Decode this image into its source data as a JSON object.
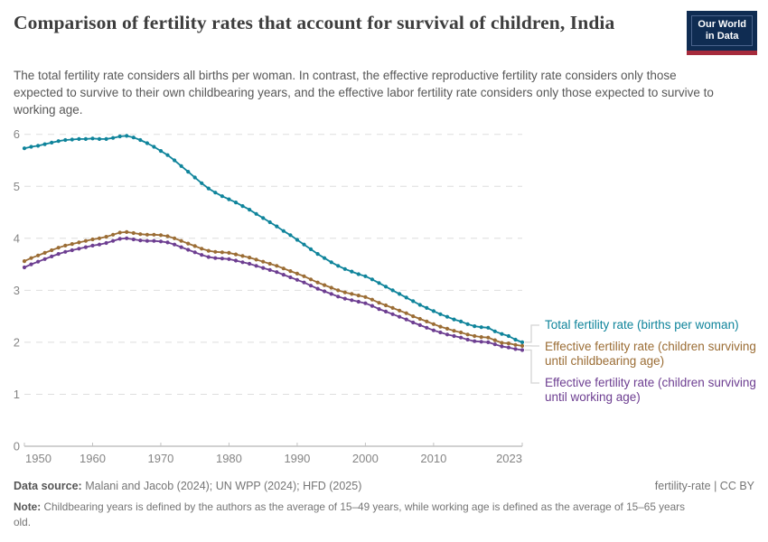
{
  "header": {
    "title": "Comparison of fertility rates that account for survival of children, India",
    "logo": {
      "line1": "Our World",
      "line2": "in Data"
    },
    "subtitle": "The total fertility rate considers all births per woman. In contrast, the effective reproductive fertility rate considers only those expected to survive to their own childbearing years, and the effective labor fertility rate considers only those expected to survive to working age."
  },
  "chart_data": {
    "type": "line",
    "title": "Comparison of fertility rates that account for survival of children, India",
    "xlabel": "",
    "ylabel": "",
    "xlim": [
      1950,
      2023
    ],
    "ylim": [
      0,
      6
    ],
    "x_ticks": [
      1950,
      1960,
      1970,
      1980,
      1990,
      2000,
      2010,
      2023
    ],
    "y_ticks": [
      0,
      1,
      2,
      3,
      4,
      5,
      6
    ],
    "grid": "horizontal-dashed",
    "legend_position": "right",
    "x": [
      1950,
      1951,
      1952,
      1953,
      1954,
      1955,
      1956,
      1957,
      1958,
      1959,
      1960,
      1961,
      1962,
      1963,
      1964,
      1965,
      1966,
      1967,
      1968,
      1969,
      1970,
      1971,
      1972,
      1973,
      1974,
      1975,
      1976,
      1977,
      1978,
      1979,
      1980,
      1981,
      1982,
      1983,
      1984,
      1985,
      1986,
      1987,
      1988,
      1989,
      1990,
      1991,
      1992,
      1993,
      1994,
      1995,
      1996,
      1997,
      1998,
      1999,
      2000,
      2001,
      2002,
      2003,
      2004,
      2005,
      2006,
      2007,
      2008,
      2009,
      2010,
      2011,
      2012,
      2013,
      2014,
      2015,
      2016,
      2017,
      2018,
      2019,
      2020,
      2021,
      2022,
      2023
    ],
    "series": [
      {
        "name": "Total fertility rate (births per woman)",
        "color": "#0f849b",
        "values": [
          5.73,
          5.76,
          5.78,
          5.81,
          5.84,
          5.87,
          5.89,
          5.9,
          5.91,
          5.91,
          5.92,
          5.91,
          5.91,
          5.93,
          5.96,
          5.97,
          5.94,
          5.89,
          5.83,
          5.76,
          5.68,
          5.6,
          5.5,
          5.39,
          5.28,
          5.17,
          5.06,
          4.96,
          4.88,
          4.81,
          4.75,
          4.69,
          4.62,
          4.55,
          4.47,
          4.39,
          4.31,
          4.23,
          4.14,
          4.06,
          3.97,
          3.88,
          3.79,
          3.7,
          3.62,
          3.54,
          3.47,
          3.41,
          3.36,
          3.31,
          3.27,
          3.21,
          3.14,
          3.07,
          3.0,
          2.93,
          2.86,
          2.79,
          2.72,
          2.66,
          2.6,
          2.54,
          2.49,
          2.44,
          2.4,
          2.35,
          2.31,
          2.29,
          2.28,
          2.21,
          2.16,
          2.12,
          2.05,
          2.0
        ]
      },
      {
        "name": "Effective fertility rate (children surviving until childbearing age)",
        "color": "#9b6d35",
        "values": [
          3.56,
          3.62,
          3.67,
          3.72,
          3.77,
          3.82,
          3.86,
          3.89,
          3.92,
          3.95,
          3.98,
          4.0,
          4.03,
          4.07,
          4.11,
          4.12,
          4.1,
          4.08,
          4.07,
          4.07,
          4.06,
          4.04,
          4.0,
          3.95,
          3.9,
          3.85,
          3.8,
          3.76,
          3.74,
          3.73,
          3.72,
          3.69,
          3.66,
          3.63,
          3.59,
          3.55,
          3.51,
          3.47,
          3.42,
          3.37,
          3.32,
          3.27,
          3.21,
          3.15,
          3.1,
          3.05,
          3.0,
          2.96,
          2.93,
          2.9,
          2.87,
          2.82,
          2.76,
          2.71,
          2.66,
          2.61,
          2.56,
          2.5,
          2.45,
          2.4,
          2.35,
          2.3,
          2.26,
          2.22,
          2.19,
          2.15,
          2.12,
          2.1,
          2.09,
          2.04,
          1.99,
          1.98,
          1.95,
          1.93
        ]
      },
      {
        "name": "Effective fertility rate (children surviving until working age)",
        "color": "#6d3e91",
        "values": [
          3.44,
          3.5,
          3.55,
          3.6,
          3.65,
          3.7,
          3.74,
          3.77,
          3.8,
          3.83,
          3.86,
          3.88,
          3.91,
          3.95,
          3.99,
          4.0,
          3.98,
          3.96,
          3.95,
          3.95,
          3.94,
          3.92,
          3.88,
          3.83,
          3.78,
          3.73,
          3.68,
          3.64,
          3.62,
          3.61,
          3.6,
          3.57,
          3.54,
          3.51,
          3.47,
          3.43,
          3.39,
          3.35,
          3.3,
          3.25,
          3.2,
          3.15,
          3.09,
          3.03,
          2.98,
          2.93,
          2.88,
          2.84,
          2.81,
          2.78,
          2.75,
          2.7,
          2.64,
          2.59,
          2.54,
          2.49,
          2.44,
          2.38,
          2.33,
          2.28,
          2.23,
          2.19,
          2.15,
          2.12,
          2.09,
          2.05,
          2.02,
          2.01,
          2.0,
          1.96,
          1.92,
          1.9,
          1.87,
          1.85
        ]
      }
    ]
  },
  "footer": {
    "source_label": "Data source:",
    "source_text": "Malani and Jacob (2024); UN WPP (2024); HFD (2025)",
    "rights": "fertility-rate | CC BY",
    "note_label": "Note:",
    "note_text": "Childbearing years is defined by the authors as the average of 15–49 years, while working age is defined as the average of 15–65 years old."
  }
}
